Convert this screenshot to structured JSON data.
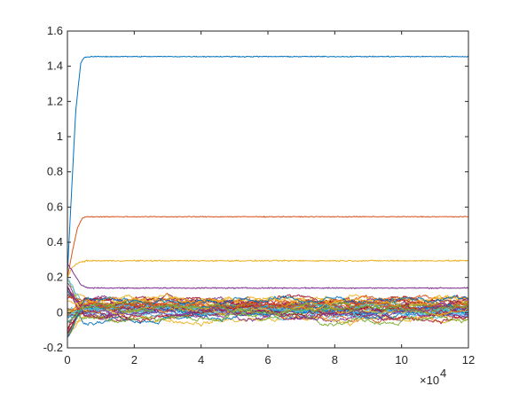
{
  "chart_data": {
    "type": "line",
    "title": "",
    "xlabel": "",
    "ylabel": "",
    "xlim": [
      0,
      120000
    ],
    "ylim": [
      -0.2,
      1.6
    ],
    "x_tick_values": [
      0,
      20000,
      40000,
      60000,
      80000,
      100000,
      120000
    ],
    "x_tick_labels": [
      "0",
      "2",
      "4",
      "6",
      "8",
      "10",
      "12"
    ],
    "x_exponent_label": "×10",
    "x_exponent_power": "4",
    "y_tick_values": [
      -0.2,
      0,
      0.2,
      0.4,
      0.6,
      0.8,
      1.0,
      1.2,
      1.4,
      1.6
    ],
    "y_tick_labels": [
      "-0.2",
      "0",
      "0.2",
      "0.4",
      "0.6",
      "0.8",
      "1",
      "1.2",
      "1.4",
      "1.6"
    ],
    "grid": false,
    "legend": "none",
    "main_series": [
      {
        "color": "#0072BD",
        "x": [
          0,
          1000,
          2500,
          4000,
          5000,
          8000,
          120000
        ],
        "y": [
          0.22,
          0.6,
          1.15,
          1.42,
          1.45,
          1.455,
          1.455
        ],
        "noise": 0.004
      },
      {
        "color": "#D95319",
        "x": [
          0,
          1500,
          3000,
          4500,
          6000,
          120000
        ],
        "y": [
          0.2,
          0.35,
          0.48,
          0.54,
          0.545,
          0.545
        ],
        "noise": 0.004
      },
      {
        "color": "#EDB120",
        "x": [
          0,
          1500,
          3000,
          4500,
          6000,
          120000
        ],
        "y": [
          0.2,
          0.26,
          0.28,
          0.29,
          0.295,
          0.295
        ],
        "noise": 0.006
      },
      {
        "color": "#7E2F8E",
        "x": [
          0,
          2000,
          4000,
          6000,
          120000
        ],
        "y": [
          0.28,
          0.22,
          0.16,
          0.14,
          0.14
        ],
        "noise": 0.005
      }
    ],
    "bundle": {
      "description_count": 40,
      "x_range": [
        0,
        120000
      ],
      "y_center": 0.02,
      "y_spread": 0.06,
      "colors": [
        "#0072BD",
        "#D95319",
        "#EDB120",
        "#7E2F8E",
        "#77AC30",
        "#4DBEEE",
        "#A2142F"
      ]
    }
  }
}
